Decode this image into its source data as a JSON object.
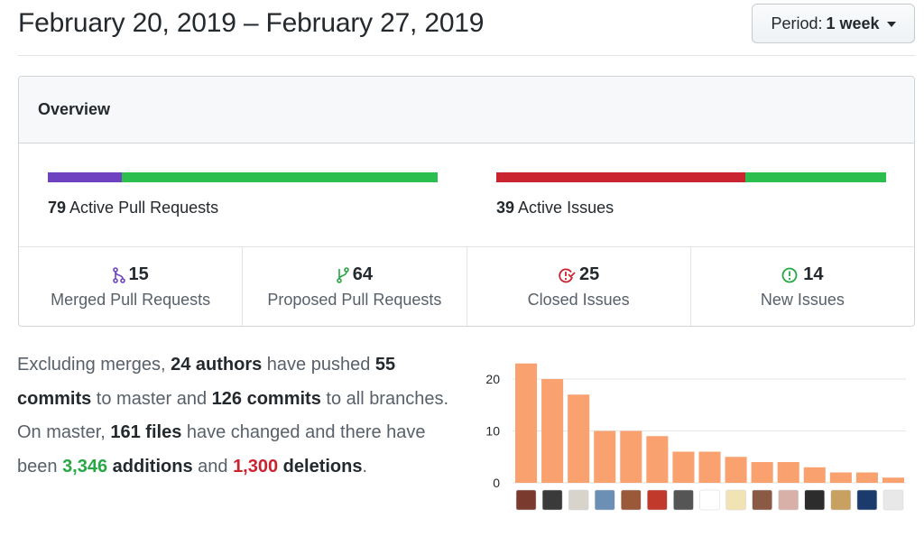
{
  "header": {
    "date_range": "February 20, 2019 – February 27, 2019",
    "period_label": "Period:",
    "period_value": "1 week"
  },
  "overview": {
    "title": "Overview",
    "pull_requests": {
      "count": "79",
      "label": "Active Pull Requests",
      "merged_fraction": 0.19,
      "open_fraction": 0.81,
      "merged_color": "#6f42c1",
      "open_color": "#2cbe4e"
    },
    "issues": {
      "count": "39",
      "label": "Active Issues",
      "closed_fraction": 0.64,
      "open_fraction": 0.36,
      "closed_color": "#cb2431",
      "open_color": "#2cbe4e"
    },
    "stats": [
      {
        "value": "15",
        "label": "Merged Pull Requests",
        "icon": "git-merge-icon",
        "color": "#6f42c1"
      },
      {
        "value": "64",
        "label": "Proposed Pull Requests",
        "icon": "git-pull-request-icon",
        "color": "#28a745"
      },
      {
        "value": "25",
        "label": "Closed Issues",
        "icon": "issue-closed-icon",
        "color": "#cb2431"
      },
      {
        "value": "14",
        "label": "New Issues",
        "icon": "issue-opened-icon",
        "color": "#28a745"
      }
    ]
  },
  "summary": {
    "t1": "Excluding merges, ",
    "authors": "24 authors",
    "t2": " have pushed ",
    "commits_master": "55 commits",
    "t3": " to master and ",
    "commits_all": "126 commits",
    "t4": " to all branches. On master, ",
    "files": "161 files",
    "t5": " have changed and there have been ",
    "additions_num": "3,346",
    "additions_word": " additions",
    "t6": " and ",
    "deletions_num": "1,300",
    "deletions_word": " deletions",
    "t7": "."
  },
  "chart_data": {
    "type": "bar",
    "color": "#f9a16f",
    "values": [
      23,
      20,
      17,
      10,
      10,
      9,
      6,
      6,
      5,
      4,
      4,
      3,
      2,
      2,
      1
    ],
    "yticks": [
      "0",
      "10",
      "20"
    ],
    "ylim": [
      0,
      24
    ]
  }
}
